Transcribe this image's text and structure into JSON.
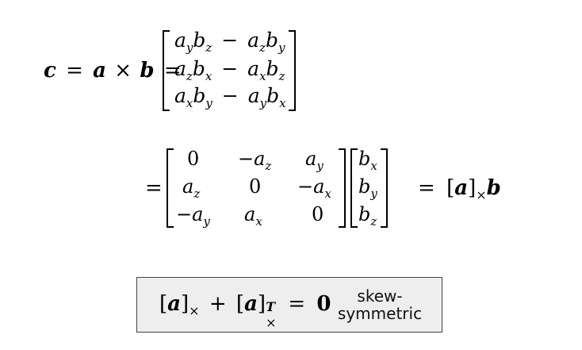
{
  "eq1": {
    "lhs": [
      "c",
      "=",
      "a",
      "×",
      "b",
      "="
    ],
    "rows": [
      "aᵧbᵪ − aᵪbᵧ",
      "aᵪbₓ − aₓbᵪ",
      "aₓbᵧ − aᵧbₓ"
    ]
  },
  "eq2": {
    "eq": "=",
    "matrix": [
      [
        "0",
        "−a_z",
        "a_y"
      ],
      [
        "a_z",
        "0",
        "−a_x"
      ],
      [
        "−a_y",
        "a_x",
        "0"
      ]
    ],
    "vector": [
      "b_x",
      "b_y",
      "b_z"
    ],
    "rhs_eq": "="
  },
  "box": {
    "note_line1": "skew-",
    "note_line2": "symmetric"
  }
}
